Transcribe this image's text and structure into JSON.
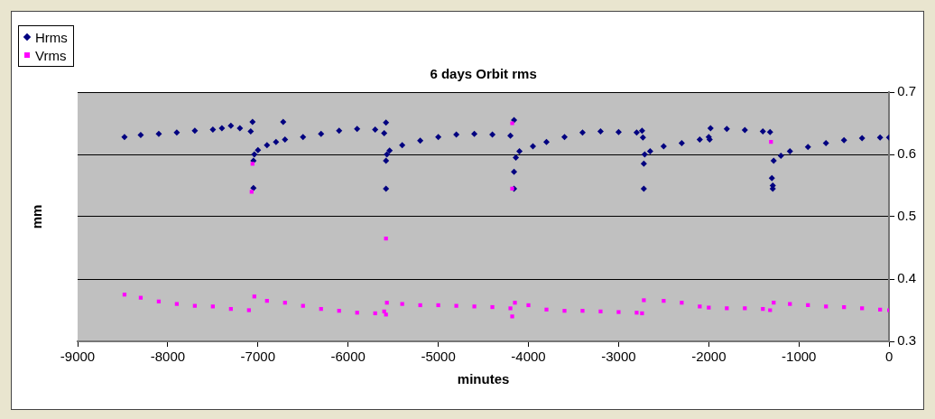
{
  "chart_data": {
    "type": "scatter",
    "title": "6 days Orbit rms",
    "xlabel": "minutes",
    "ylabel": "mm",
    "xlim": [
      -9000,
      0
    ],
    "xticks": [
      -9000,
      -8000,
      -7000,
      -6000,
      -5000,
      -4000,
      -3000,
      -2000,
      -1000,
      0
    ],
    "ylim": [
      0.3,
      0.7
    ],
    "yticks": [
      0.3,
      0.4,
      0.5,
      0.6,
      0.7
    ],
    "grid": "y",
    "legend": "top left",
    "series": [
      {
        "name": "Hrms",
        "color": "#000080",
        "marker": "diamond",
        "x": [
          -8480,
          -8300,
          -8100,
          -7900,
          -7700,
          -7500,
          -7400,
          -7300,
          -7200,
          -7080,
          -7060,
          -7050,
          -7050,
          -7040,
          -7000,
          -6900,
          -6800,
          -6720,
          -6700,
          -6500,
          -6300,
          -6100,
          -5900,
          -5700,
          -5600,
          -5580,
          -5580,
          -5580,
          -5570,
          -5540,
          -5400,
          -5200,
          -5000,
          -4800,
          -4600,
          -4400,
          -4200,
          -4160,
          -4160,
          -4160,
          -4140,
          -4100,
          -3950,
          -3800,
          -3600,
          -3400,
          -3200,
          -3000,
          -2800,
          -2740,
          -2730,
          -2720,
          -2720,
          -2710,
          -2650,
          -2500,
          -2300,
          -2100,
          -2000,
          -1990,
          -1980,
          -1800,
          -1600,
          -1400,
          -1320,
          -1300,
          -1290,
          -1290,
          -1280,
          -1200,
          -1100,
          -900,
          -700,
          -500,
          -300,
          -100,
          0
        ],
        "values": [
          0.628,
          0.631,
          0.633,
          0.635,
          0.638,
          0.64,
          0.642,
          0.646,
          0.642,
          0.637,
          0.652,
          0.546,
          0.59,
          0.6,
          0.607,
          0.615,
          0.62,
          0.652,
          0.624,
          0.628,
          0.633,
          0.638,
          0.641,
          0.64,
          0.634,
          0.651,
          0.545,
          0.59,
          0.6,
          0.606,
          0.615,
          0.622,
          0.628,
          0.632,
          0.633,
          0.632,
          0.63,
          0.655,
          0.572,
          0.545,
          0.595,
          0.605,
          0.613,
          0.62,
          0.628,
          0.635,
          0.637,
          0.636,
          0.635,
          0.638,
          0.627,
          0.545,
          0.585,
          0.6,
          0.605,
          0.613,
          0.618,
          0.624,
          0.628,
          0.624,
          0.642,
          0.641,
          0.639,
          0.637,
          0.636,
          0.562,
          0.545,
          0.55,
          0.59,
          0.598,
          0.605,
          0.612,
          0.618,
          0.623,
          0.626,
          0.627,
          0.627
        ]
      },
      {
        "name": "Vrms",
        "color": "#ff00ff",
        "marker": "square",
        "x": [
          -8480,
          -8300,
          -8100,
          -7900,
          -7700,
          -7500,
          -7300,
          -7100,
          -7070,
          -7060,
          -7040,
          -6900,
          -6700,
          -6500,
          -6300,
          -6100,
          -5900,
          -5700,
          -5600,
          -5580,
          -5580,
          -5570,
          -5400,
          -5200,
          -5000,
          -4800,
          -4600,
          -4400,
          -4200,
          -4180,
          -4180,
          -4180,
          -4150,
          -4000,
          -3800,
          -3600,
          -3400,
          -3200,
          -3000,
          -2800,
          -2740,
          -2720,
          -2500,
          -2300,
          -2100,
          -2000,
          -1800,
          -1600,
          -1400,
          -1320,
          -1310,
          -1280,
          -1100,
          -900,
          -700,
          -500,
          -300,
          -100,
          0
        ],
        "values": [
          0.375,
          0.37,
          0.364,
          0.36,
          0.357,
          0.356,
          0.352,
          0.35,
          0.54,
          0.585,
          0.372,
          0.365,
          0.362,
          0.357,
          0.352,
          0.349,
          0.346,
          0.345,
          0.348,
          0.343,
          0.465,
          0.362,
          0.36,
          0.358,
          0.358,
          0.357,
          0.356,
          0.355,
          0.353,
          0.34,
          0.65,
          0.545,
          0.362,
          0.358,
          0.351,
          0.349,
          0.349,
          0.348,
          0.347,
          0.346,
          0.345,
          0.366,
          0.365,
          0.362,
          0.356,
          0.354,
          0.353,
          0.353,
          0.352,
          0.35,
          0.62,
          0.362,
          0.36,
          0.358,
          0.356,
          0.355,
          0.353,
          0.351,
          0.35
        ]
      }
    ]
  }
}
